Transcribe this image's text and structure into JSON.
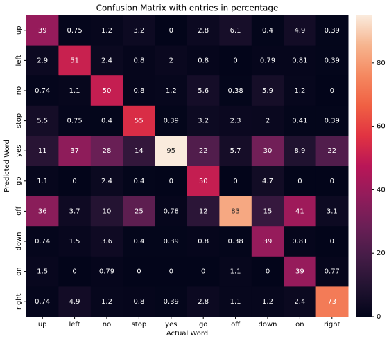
{
  "chart_data": {
    "type": "heatmap",
    "title": "Confusion Matrix with entries in percentage",
    "x_label": "Actual Word",
    "y_label": "Predicted Word",
    "x_categories": [
      "up",
      "left",
      "no",
      "stop",
      "yes",
      "go",
      "off",
      "down",
      "on",
      "right"
    ],
    "y_categories": [
      "up",
      "left",
      "no",
      "stop",
      "yes",
      "go",
      "off",
      "down",
      "on",
      "right"
    ],
    "values": [
      [
        39,
        0.75,
        1.2,
        3.2,
        0,
        2.8,
        6.1,
        0.4,
        4.9,
        0.39
      ],
      [
        2.9,
        51,
        2.4,
        0.8,
        2,
        0.8,
        0,
        0.79,
        0.81,
        0.39
      ],
      [
        0.74,
        1.1,
        50,
        0.8,
        1.2,
        5.6,
        0.38,
        5.9,
        1.2,
        0
      ],
      [
        5.5,
        0.75,
        0.4,
        55,
        0.39,
        3.2,
        2.3,
        2,
        0.41,
        0.39
      ],
      [
        11,
        37,
        28,
        14,
        95,
        22,
        5.7,
        30,
        8.9,
        22
      ],
      [
        1.1,
        0,
        2.4,
        0.4,
        0,
        50,
        0,
        4.7,
        0,
        0
      ],
      [
        36,
        3.7,
        10,
        25,
        0.78,
        12,
        83,
        15,
        41,
        3.1
      ],
      [
        0.74,
        1.5,
        3.6,
        0.4,
        0.39,
        0.8,
        0.38,
        39,
        0.81,
        0
      ],
      [
        1.5,
        0,
        0.79,
        0,
        0,
        0,
        1.1,
        0,
        39,
        0.77
      ],
      [
        0.74,
        4.9,
        1.2,
        0.8,
        0.39,
        2.8,
        1.1,
        1.2,
        2.4,
        73
      ]
    ],
    "zlim": [
      0,
      95
    ],
    "colorbar_ticks": [
      0,
      20,
      40,
      60,
      80
    ],
    "colorscale": [
      "#03051a",
      "#221331",
      "#451c47",
      "#6b1f56",
      "#921c5b",
      "#b91657",
      "#e13342",
      "#f06043",
      "#f58860",
      "#f6b48e",
      "#faebdd"
    ]
  }
}
